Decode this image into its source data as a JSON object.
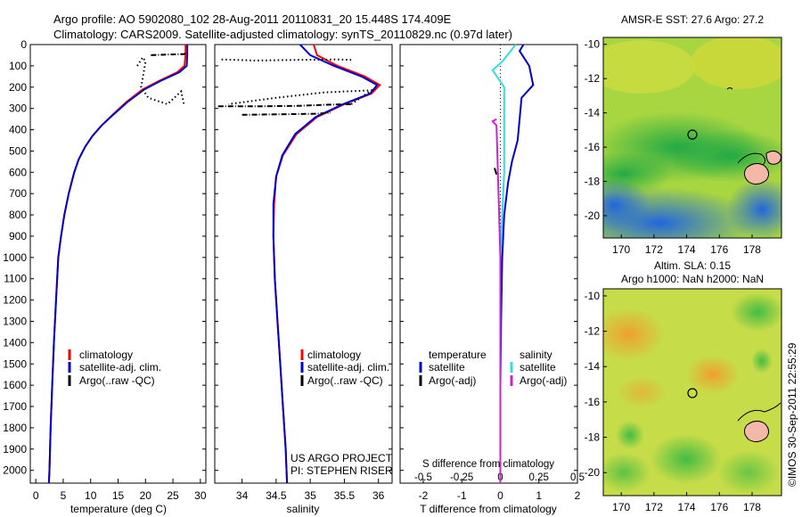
{
  "header": {
    "line1": "Argo profile: AO 5902080_102 28-Aug-2011 20110831_20 15.448S 174.409E",
    "line2": "Climatology: CARS2009. Satellite-adjusted climatology: synTS_20110829.nc (0.97d later)"
  },
  "footer": {
    "project": "US ARGO PROJECT",
    "pi": "PI: STEPHEN RISER",
    "timestamp": "©IMOS 30-Sep-2011 22:55:29"
  },
  "colors": {
    "climatology": "#ff0000",
    "satellite": "#0000cc",
    "argo": "#000000",
    "satellite_s": "#33dddd",
    "argo_s": "#cc22cc",
    "sst_map": "#33bb44",
    "sla_map": "#88cc33"
  },
  "chart_data": [
    {
      "type": "line",
      "id": "temperature",
      "xlabel": "temperature (deg C)",
      "xlim": [
        -1,
        31
      ],
      "xticks": [
        0,
        5,
        10,
        15,
        20,
        25,
        30
      ],
      "ylim": [
        0,
        2060
      ],
      "yticks": [
        0,
        100,
        200,
        300,
        400,
        500,
        600,
        700,
        800,
        900,
        1000,
        1100,
        1200,
        1300,
        1400,
        1500,
        1600,
        1700,
        1800,
        1900,
        2000
      ],
      "legend": [
        "climatology",
        "satellite-adj. clim.",
        "Argo(..raw -QC)"
      ],
      "series": [
        {
          "name": "climatology",
          "color": "#ff0000",
          "points": [
            [
              27.3,
              0
            ],
            [
              27.3,
              50
            ],
            [
              27.1,
              100
            ],
            [
              25.8,
              130
            ],
            [
              22.5,
              170
            ],
            [
              19.5,
              210
            ],
            [
              16.5,
              270
            ],
            [
              14,
              330
            ],
            [
              12,
              380
            ],
            [
              10.3,
              430
            ],
            [
              9,
              480
            ],
            [
              7.8,
              540
            ],
            [
              7,
              600
            ],
            [
              6,
              700
            ],
            [
              5.2,
              800
            ],
            [
              4.6,
              900
            ],
            [
              4.1,
              1000
            ],
            [
              3.7,
              1200
            ],
            [
              3.3,
              1400
            ],
            [
              3,
              1600
            ],
            [
              2.7,
              1800
            ],
            [
              2.5,
              2000
            ],
            [
              2.4,
              2060
            ]
          ]
        },
        {
          "name": "satellite-adj. clim.",
          "color": "#0000cc",
          "points": [
            [
              27.6,
              0
            ],
            [
              27.6,
              50
            ],
            [
              27.5,
              100
            ],
            [
              26.2,
              130
            ],
            [
              22.8,
              170
            ],
            [
              19.8,
              210
            ],
            [
              16.7,
              270
            ],
            [
              14.1,
              330
            ],
            [
              12,
              380
            ],
            [
              10.3,
              430
            ],
            [
              9,
              480
            ],
            [
              7.8,
              540
            ],
            [
              7,
              600
            ],
            [
              6,
              700
            ],
            [
              5.2,
              800
            ],
            [
              4.6,
              900
            ],
            [
              4.1,
              1000
            ],
            [
              3.7,
              1200
            ],
            [
              3.3,
              1400
            ],
            [
              3,
              1600
            ],
            [
              2.7,
              1800
            ],
            [
              2.5,
              2000
            ],
            [
              2.4,
              2060
            ]
          ]
        },
        {
          "name": "Argo(..raw -QC)",
          "color": "#000000",
          "style": "dashdot",
          "points": [
            [
              21,
              50
            ],
            [
              24,
              47
            ],
            [
              27,
              45
            ],
            [
              27.4,
              40
            ]
          ]
        },
        {
          "name": "Argo(..raw -QC)",
          "color": "#000000",
          "style": "dotted",
          "points": [
            [
              18.5,
              100
            ],
            [
              19.5,
              60
            ],
            [
              20,
              80
            ],
            [
              19.2,
              200
            ],
            [
              20.5,
              250
            ],
            [
              24,
              280
            ],
            [
              26.5,
              220
            ],
            [
              27,
              280
            ]
          ]
        }
      ]
    },
    {
      "type": "line",
      "id": "salinity",
      "xlabel": "salinity",
      "xlim": [
        33.6,
        36.2
      ],
      "xticks": [
        34,
        34.5,
        35,
        35.5,
        36
      ],
      "ylim": [
        0,
        2060
      ],
      "legend": [
        "climatology",
        "satellite-adj. clim.",
        "Argo(..raw -QC)"
      ],
      "series": [
        {
          "name": "climatology",
          "color": "#ff0000",
          "points": [
            [
              35.05,
              0
            ],
            [
              35.1,
              50
            ],
            [
              35.4,
              100
            ],
            [
              35.8,
              150
            ],
            [
              36.02,
              190
            ],
            [
              35.9,
              230
            ],
            [
              35.5,
              280
            ],
            [
              35.1,
              340
            ],
            [
              34.8,
              420
            ],
            [
              34.6,
              520
            ],
            [
              34.5,
              620
            ],
            [
              34.47,
              750
            ],
            [
              34.46,
              900
            ],
            [
              34.48,
              1100
            ],
            [
              34.52,
              1300
            ],
            [
              34.56,
              1500
            ],
            [
              34.6,
              1700
            ],
            [
              34.64,
              1900
            ],
            [
              34.66,
              2060
            ]
          ]
        },
        {
          "name": "satellite-adj. clim.",
          "color": "#0000cc",
          "points": [
            [
              34.85,
              0
            ],
            [
              35.0,
              50
            ],
            [
              35.35,
              100
            ],
            [
              35.75,
              150
            ],
            [
              35.98,
              190
            ],
            [
              35.88,
              230
            ],
            [
              35.48,
              280
            ],
            [
              35.08,
              340
            ],
            [
              34.78,
              420
            ],
            [
              34.59,
              520
            ],
            [
              34.5,
              620
            ],
            [
              34.46,
              750
            ],
            [
              34.46,
              900
            ],
            [
              34.48,
              1100
            ],
            [
              34.52,
              1300
            ],
            [
              34.56,
              1500
            ],
            [
              34.6,
              1700
            ],
            [
              34.64,
              1900
            ],
            [
              34.66,
              2060
            ]
          ]
        },
        {
          "name": "Argo(..raw -QC)",
          "color": "#000000",
          "style": "dotted",
          "points": [
            [
              33.7,
              70
            ],
            [
              34.2,
              75
            ],
            [
              34.8,
              72
            ],
            [
              35.4,
              70
            ],
            [
              35.6,
              72
            ]
          ]
        },
        {
          "name": "Argo(..raw -QC)",
          "color": "#000000",
          "style": "dashdot",
          "points": [
            [
              33.65,
              290
            ],
            [
              34.2,
              290
            ],
            [
              34.8,
              288
            ],
            [
              35.2,
              283
            ],
            [
              35.6,
              280
            ]
          ]
        },
        {
          "name": "Argo(..raw -QC)",
          "color": "#000000",
          "style": "dotted",
          "points": [
            [
              35.6,
              280
            ],
            [
              35.9,
              215
            ],
            [
              35.2,
              225
            ],
            [
              34.5,
              250
            ],
            [
              33.8,
              280
            ]
          ]
        },
        {
          "name": "Argo(..raw -QC)",
          "color": "#000000",
          "style": "dashdot",
          "points": [
            [
              34.0,
              330
            ],
            [
              34.5,
              328
            ],
            [
              35.1,
              325
            ],
            [
              35.3,
              320
            ]
          ]
        }
      ]
    },
    {
      "type": "line",
      "id": "difference",
      "xlabel": "T difference from climatology",
      "xlabel_top": "S difference from climatology",
      "xlim": [
        -2.6,
        2.0
      ],
      "xticks": [
        -2,
        -1,
        0,
        1,
        2
      ],
      "xticks_s": [
        "-0.5",
        "-0.25",
        "0",
        "0.25",
        "0.5"
      ],
      "ylim": [
        0,
        2060
      ],
      "legend_left_title": "temperature",
      "legend_left": [
        "satellite",
        "Argo(-adj)"
      ],
      "legend_right_title": "salinity",
      "legend_right": [
        "satellite",
        "Argo(-adj)"
      ],
      "series": [
        {
          "name": "satellite",
          "color": "#0000cc",
          "points": [
            [
              0.6,
              0
            ],
            [
              0.5,
              30
            ],
            [
              0.75,
              100
            ],
            [
              0.85,
              190
            ],
            [
              0.55,
              250
            ],
            [
              0.5,
              350
            ],
            [
              0.45,
              450
            ],
            [
              0.3,
              550
            ],
            [
              0.2,
              650
            ],
            [
              0.1,
              800
            ],
            [
              0.05,
              1000
            ],
            [
              0.02,
              1300
            ],
            [
              0.0,
              1600
            ],
            [
              0.0,
              2060
            ]
          ]
        },
        {
          "name": "satellite",
          "color": "#33dddd",
          "points": [
            [
              0.4,
              0
            ],
            [
              0.05,
              80
            ],
            [
              -0.2,
              120
            ],
            [
              0.1,
              200
            ],
            [
              0.1,
              400
            ],
            [
              0.1,
              600
            ],
            [
              0.05,
              800
            ],
            [
              0.0,
              1000
            ],
            [
              0.0,
              2060
            ]
          ]
        },
        {
          "name": "Argo(-adj)",
          "color": "#cc22cc",
          "points": [
            [
              -0.1,
              350
            ],
            [
              -0.2,
              360
            ],
            [
              -0.1,
              380
            ],
            [
              0.0,
              1000
            ],
            [
              0.0,
              2060
            ]
          ]
        },
        {
          "name": "Argo(-adj)",
          "color": "#000000",
          "points": [
            [
              -0.15,
              580
            ],
            [
              -0.1,
              610
            ]
          ]
        }
      ]
    },
    {
      "type": "heatmap",
      "id": "sst-map",
      "title": "AMSR-E SST: 27.6  Argo: 27.2",
      "xticks": [
        "170",
        "172",
        "174",
        "176",
        "178"
      ],
      "yticks": [
        "-10",
        "-12",
        "-14",
        "-16",
        "-18",
        "-20"
      ],
      "xlim": [
        168.9,
        179.8
      ],
      "ylim": [
        -21.3,
        -9.6
      ],
      "marker": [
        174.4,
        -15.45
      ]
    },
    {
      "type": "heatmap",
      "id": "sla-map",
      "title": "Altim. SLA: 0.15",
      "subtitle": "Argo h1000: NaN  h2000: NaN",
      "xticks": [
        "170",
        "172",
        "174",
        "176",
        "178"
      ],
      "yticks": [
        "-10",
        "-12",
        "-14",
        "-16",
        "-18",
        "-20"
      ],
      "xlim": [
        168.9,
        179.8
      ],
      "ylim": [
        -21.3,
        -9.6
      ],
      "marker": [
        174.4,
        -15.45
      ]
    }
  ]
}
